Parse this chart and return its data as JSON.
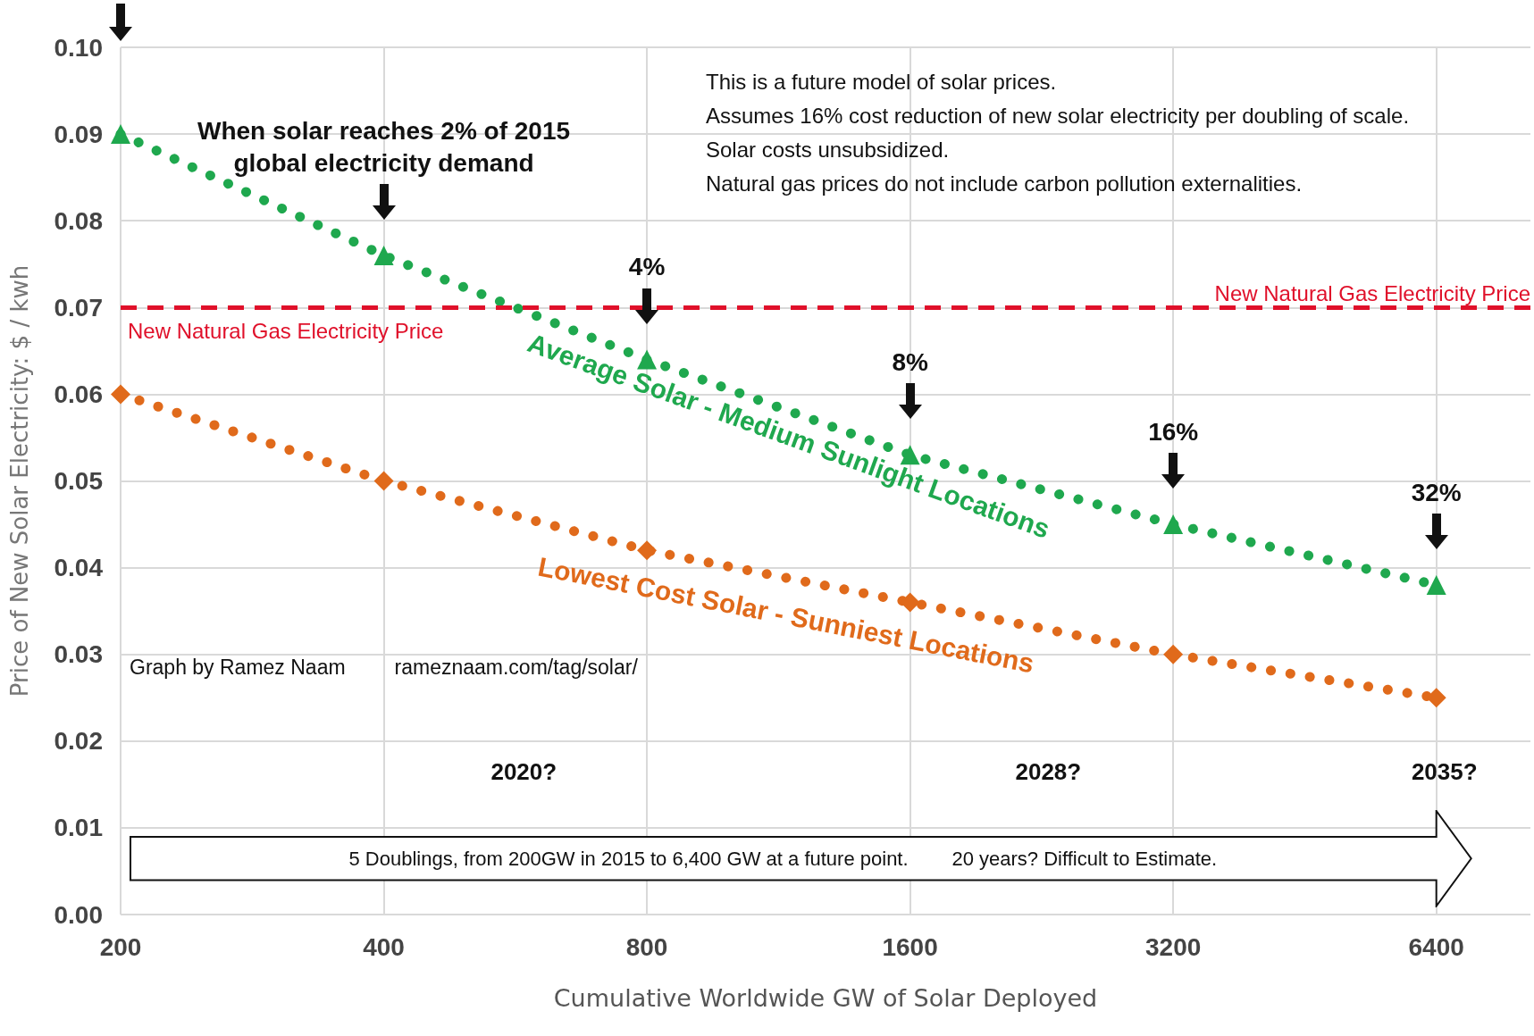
{
  "chart_data": {
    "type": "line",
    "xlabel": "Cumulative Worldwide GW of Solar Deployed",
    "ylabel": "Price of New Solar Electricity: $ / kwh",
    "x": [
      200,
      400,
      800,
      1600,
      3200,
      6400
    ],
    "series": [
      {
        "name": "Average Solar - Medium Sunlight Locations",
        "color": "#1fa84e",
        "marker": "triangle",
        "values": [
          0.09,
          0.076,
          0.064,
          0.053,
          0.045,
          0.038
        ]
      },
      {
        "name": "Lowest Cost Solar - Sunniest Locations",
        "color": "#e06a1b",
        "marker": "diamond",
        "values": [
          0.06,
          0.05,
          0.042,
          0.036,
          0.03,
          0.025
        ]
      }
    ],
    "line_style": "dotted",
    "log": "x",
    "xlim": [
      200,
      8200
    ],
    "xticks": [
      200,
      400,
      800,
      1600,
      3200,
      6400
    ],
    "ylim": [
      0,
      0.1
    ],
    "yticks": [
      {
        "value": 0,
        "label": "0.00"
      },
      {
        "value": 0.01,
        "label": "0.01"
      },
      {
        "value": 0.02,
        "label": "0.02"
      },
      {
        "value": 0.03,
        "label": "0.03"
      },
      {
        "value": 0.04,
        "label": "0.04"
      },
      {
        "value": 0.05,
        "label": "0.05"
      },
      {
        "value": 0.06,
        "label": "0.06"
      },
      {
        "value": 0.07,
        "label": "0.07"
      },
      {
        "value": 0.08,
        "label": "0.08"
      },
      {
        "value": 0.09,
        "label": "0.09"
      },
      {
        "value": 0.1,
        "label": "0.10"
      }
    ],
    "grid": true,
    "legend": false,
    "ref_lines": [
      {
        "axis": "y",
        "value": 0.07,
        "label": "New Natural Gas Electricity Price",
        "color": "#e0102a",
        "line_style": "dashed"
      }
    ],
    "annotations": [
      "When solar reaches 2% of 2015\nglobal electricity demand",
      "4%",
      "8%",
      "16%",
      "32%",
      "This is a future model of solar prices.\nAssumes 16% cost reduction of new solar electricity per doubling of scale.\nSolar costs unsubsidized.\nNatural gas prices do not include carbon pollution externalities.",
      "Graph by Ramez Naam",
      "rameznaam.com/tag/solar/",
      "2020?",
      "2028?",
      "2035?",
      "5 Doublings, from 200GW in 2015 to 6,400 GW at a future point.        20 years? Difficult to Estimate.",
      {
        "text": "New Natural Gas Electricity Price",
        "x": 200,
        "y": 0.07
      }
    ]
  }
}
